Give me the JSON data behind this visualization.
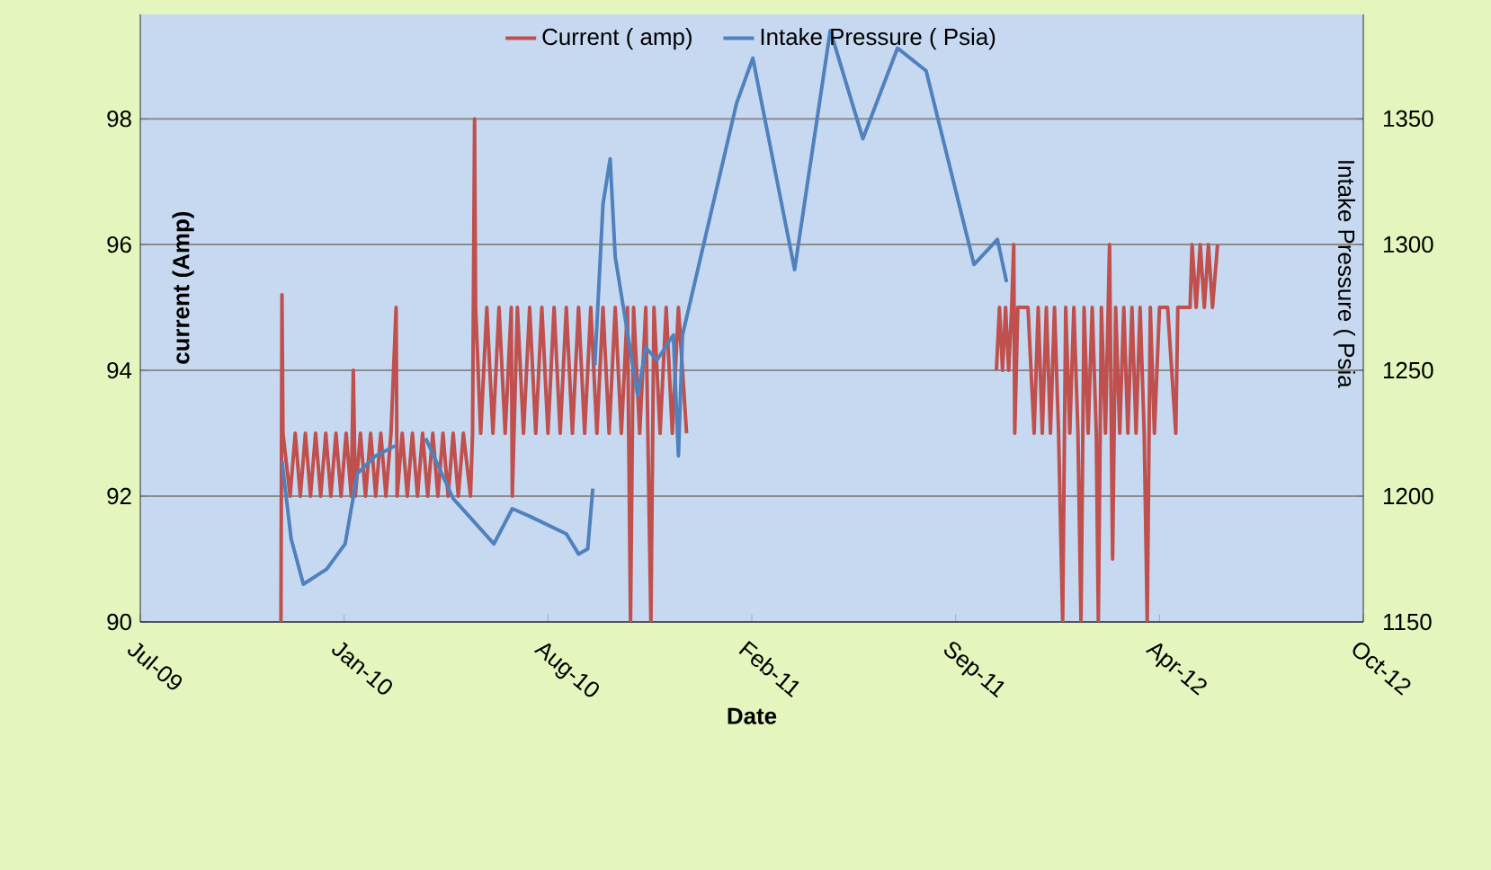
{
  "chart_data": {
    "type": "line",
    "xlabel": "Date",
    "ylabel": "current (Amp)",
    "y2label": "Intake Pressure ( Psia",
    "xlim": [
      "2009-07-07",
      "2012-10-19"
    ],
    "xticks": [
      {
        "value": "2009-07-07",
        "label": "Jul-09"
      },
      {
        "value": "2010-01-23",
        "label": "Jan-10"
      },
      {
        "value": "2010-08-11",
        "label": "Aug-10"
      },
      {
        "value": "2011-02-27",
        "label": "Feb-11"
      },
      {
        "value": "2011-09-15",
        "label": "Sep-11"
      },
      {
        "value": "2012-04-02",
        "label": "Apr-12"
      },
      {
        "value": "2012-10-19",
        "label": "Oct-12"
      }
    ],
    "ylim": [
      90,
      99.66
    ],
    "yticks": [
      90,
      92,
      94,
      96,
      98
    ],
    "y2lim": [
      1150,
      1391.4
    ],
    "y2ticks": [
      1150,
      1200,
      1250,
      1300,
      1350
    ],
    "grid": "y",
    "legend": "top",
    "series": [
      {
        "name": "Current ( amp)",
        "color": "#c0504d",
        "x": [
          "2009-11-22",
          "2009-11-23",
          "2009-11-24",
          "2009-12-01",
          "2009-12-06",
          "2009-12-11",
          "2009-12-16",
          "2009-12-21",
          "2009-12-26",
          "2009-12-31",
          "2010-01-05",
          "2010-01-10",
          "2010-01-15",
          "2010-01-20",
          "2010-01-25",
          "2010-01-30",
          "2010-02-01",
          "2010-02-03",
          "2010-02-08",
          "2010-02-13",
          "2010-02-18",
          "2010-02-23",
          "2010-02-28",
          "2010-03-05",
          "2010-03-10",
          "2010-03-15",
          "2010-03-16",
          "2010-03-21",
          "2010-03-26",
          "2010-03-31",
          "2010-04-05",
          "2010-04-10",
          "2010-04-15",
          "2010-04-20",
          "2010-04-25",
          "2010-04-30",
          "2010-05-05",
          "2010-05-10",
          "2010-05-15",
          "2010-05-20",
          "2010-05-27",
          "2010-05-29",
          "2010-05-31",
          "2010-06-01",
          "2010-06-06",
          "2010-06-12",
          "2010-06-18",
          "2010-06-24",
          "2010-06-30",
          "2010-07-06",
          "2010-07-07",
          "2010-07-12",
          "2010-07-18",
          "2010-07-24",
          "2010-07-30",
          "2010-08-05",
          "2010-08-11",
          "2010-08-17",
          "2010-08-23",
          "2010-08-29",
          "2010-09-04",
          "2010-09-10",
          "2010-09-16",
          "2010-09-22",
          "2010-09-28",
          "2010-10-04",
          "2010-10-10",
          "2010-10-16",
          "2010-10-22",
          "2010-10-28",
          "2010-10-31",
          "2010-11-03",
          "2010-11-09",
          "2010-11-15",
          "2010-11-20",
          "2010-11-23",
          "2010-11-29",
          "2010-12-05",
          "2010-12-11",
          "2010-12-17",
          "2010-12-25",
          "2011-05-01",
          "2011-10-25",
          "2011-10-28",
          "2011-10-31",
          "2011-11-03",
          "2011-11-06",
          "2011-11-09",
          "2011-11-11",
          "2011-11-12",
          "2011-11-15",
          "2011-11-20",
          "2011-11-25",
          "2011-12-01",
          "2011-12-05",
          "2011-12-09",
          "2011-12-13",
          "2011-12-17",
          "2011-12-21",
          "2011-12-25",
          "2011-12-29",
          "2012-01-01",
          "2012-01-05",
          "2012-01-09",
          "2012-01-13",
          "2012-01-16",
          "2012-01-19",
          "2012-01-23",
          "2012-01-27",
          "2012-01-31",
          "2012-02-02",
          "2012-02-05",
          "2012-02-09",
          "2012-02-13",
          "2012-02-16",
          "2012-02-19",
          "2012-02-23",
          "2012-02-27",
          "2012-03-02",
          "2012-03-06",
          "2012-03-10",
          "2012-03-14",
          "2012-03-18",
          "2012-03-21",
          "2012-03-24",
          "2012-03-28",
          "2012-04-02",
          "2012-04-10",
          "2012-04-18",
          "2012-04-20",
          "2012-05-02",
          "2012-05-04",
          "2012-05-08",
          "2012-05-12",
          "2012-05-16",
          "2012-05-20",
          "2012-05-24",
          "2012-05-29"
        ],
        "values": [
          90,
          95.2,
          93,
          92,
          93,
          92,
          93,
          92,
          93,
          92,
          93,
          92,
          93,
          92,
          93,
          92,
          94,
          92,
          93,
          92,
          93,
          92,
          93,
          92,
          93,
          95,
          92,
          93,
          92,
          93,
          92,
          93,
          92,
          93,
          92,
          93,
          92,
          93,
          92,
          93,
          92,
          93,
          98,
          95,
          93,
          95,
          93,
          95,
          93,
          95,
          92,
          95,
          93,
          95,
          93,
          95,
          93,
          95,
          93,
          95,
          93,
          95,
          93,
          95,
          93,
          95,
          93,
          95,
          93,
          95,
          90,
          95,
          93,
          95,
          90,
          95,
          93,
          95,
          93,
          95,
          93,
          null,
          94,
          95,
          94,
          95,
          94,
          95,
          96,
          93,
          95,
          95,
          95,
          93,
          95,
          93,
          95,
          93,
          95,
          93,
          90,
          95,
          93,
          95,
          93,
          90,
          95,
          93,
          95,
          93,
          90,
          95,
          93,
          96,
          91,
          95,
          93,
          95,
          93,
          95,
          93,
          95,
          93,
          90,
          95,
          93,
          95,
          95,
          93,
          95,
          95,
          96,
          95,
          96,
          95,
          96,
          95,
          96
        ]
      },
      {
        "name": "Intake Pressure ( Psia)",
        "color": "#4f81bd",
        "axis": "y2",
        "x": [
          "2009-11-23",
          "2009-12-02",
          "2009-12-14",
          "2010-01-06",
          "2010-01-24",
          "2010-02-05",
          "2010-02-23",
          "2010-03-14",
          "2010-03-28",
          "2010-04-13",
          "2010-05-10",
          "2010-06-19",
          "2010-07-07",
          "2010-07-24",
          "2010-08-29",
          "2010-09-10",
          "2010-09-19",
          "2010-09-24",
          "2010-09-25",
          "2010-09-26",
          "2010-10-04",
          "2010-10-11",
          "2010-10-16",
          "2010-11-07",
          "2010-11-15",
          "2010-11-26",
          "2010-12-12",
          "2010-12-17",
          "2010-12-21",
          "2011-02-12",
          "2011-02-28",
          "2011-04-10",
          "2011-05-15",
          "2011-06-16",
          "2011-07-20",
          "2011-08-17",
          "2011-10-03",
          "2011-10-26",
          "2011-11-04"
        ],
        "values": [
          1214,
          1183,
          1165,
          1171,
          1181,
          1209,
          1216,
          1220,
          null,
          1223,
          1199,
          1181,
          1195,
          1192,
          1185,
          1177,
          1179,
          1203,
          null,
          1252,
          1316,
          1334,
          1295,
          1240,
          1259,
          1254,
          1264,
          1216,
          1264,
          1356,
          1374,
          1290,
          1385,
          1342,
          1378,
          1369,
          1292,
          1302,
          1285
        ]
      }
    ]
  }
}
